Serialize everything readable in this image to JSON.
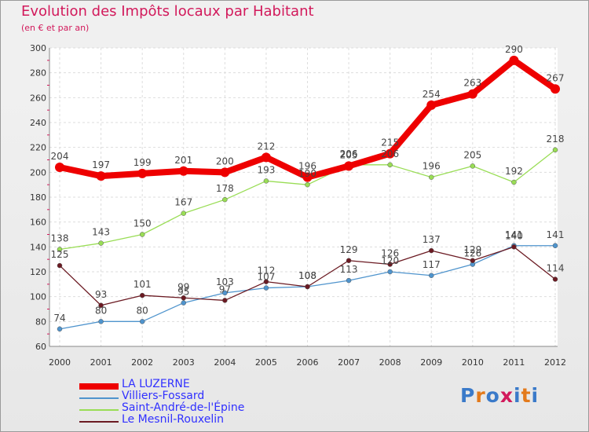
{
  "title": "Evolution des Impôts locaux par Habitant",
  "subtitle": "(en € et par an)",
  "logo": {
    "text": "Proxiti",
    "colors": [
      "#3a7ac9",
      "#e37a1b",
      "#3a7ac9",
      "#d2195b",
      "#3a7ac9",
      "#e37a1b",
      "#3a7ac9"
    ]
  },
  "chart_data": {
    "type": "line",
    "title": "Evolution des Impôts locaux par Habitant",
    "subtitle": "(en € et par an)",
    "x": [
      "2000",
      "2001",
      "2002",
      "2003",
      "2004",
      "2005",
      "2006",
      "2007",
      "2008",
      "2009",
      "2010",
      "2011",
      "2012"
    ],
    "ylim": [
      60,
      300
    ],
    "yticks": [
      60,
      80,
      100,
      120,
      140,
      160,
      180,
      200,
      220,
      240,
      260,
      280,
      300
    ],
    "grid": true,
    "legend": "bottom-left",
    "series": [
      {
        "name": "LA LUZERNE",
        "color": "#ee0000",
        "values": [
          204,
          197,
          199,
          201,
          200,
          212,
          196,
          205,
          215,
          254,
          263,
          290,
          267
        ]
      },
      {
        "name": "Villiers-Fossard",
        "color": "#4f94cd",
        "values": [
          74,
          80,
          80,
          95,
          103,
          107,
          108,
          113,
          120,
          117,
          126,
          141,
          141
        ]
      },
      {
        "name": "Saint-André-de-l'Épine",
        "color": "#99dd55",
        "values": [
          138,
          143,
          150,
          167,
          178,
          193,
          190,
          206,
          206,
          196,
          205,
          192,
          218
        ]
      },
      {
        "name": "Le Mesnil-Rouxelin",
        "color": "#6b1a22",
        "values": [
          125,
          93,
          101,
          99,
          97,
          112,
          108,
          129,
          126,
          137,
          129,
          140,
          114
        ]
      }
    ]
  }
}
